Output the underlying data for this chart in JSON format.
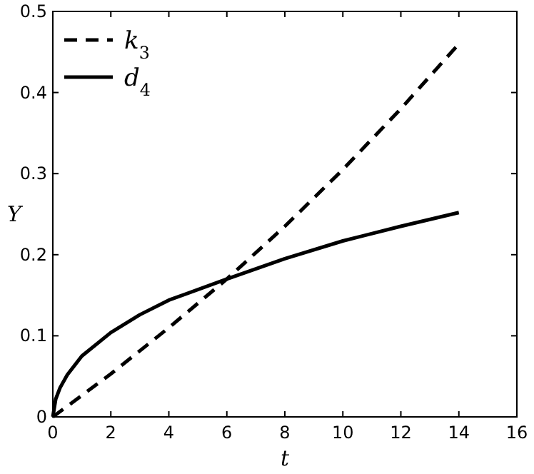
{
  "chart_data": {
    "type": "line",
    "xlabel": "t",
    "ylabel": "Y",
    "xlim": [
      0,
      16
    ],
    "ylim": [
      0,
      0.5
    ],
    "xticks": [
      0,
      2,
      4,
      6,
      8,
      10,
      12,
      14,
      16
    ],
    "yticks": [
      0,
      0.1,
      0.2,
      0.3,
      0.4,
      0.5
    ],
    "grid": false,
    "legend": "top left",
    "series": [
      {
        "name": "k$_{3}$",
        "color": "#000000",
        "line_style": "dashed",
        "x": [
          0,
          2,
          4,
          6,
          8,
          10,
          12,
          14
        ],
        "values": [
          0,
          0.053,
          0.11,
          0.17,
          0.235,
          0.305,
          0.38,
          0.46
        ]
      },
      {
        "name": "d$_{4}$",
        "color": "#000000",
        "line_style": "solid",
        "x": [
          0,
          0.1,
          0.25,
          0.5,
          1,
          2,
          3,
          4,
          6,
          8,
          10,
          12,
          14
        ],
        "values": [
          0,
          0.022,
          0.036,
          0.052,
          0.075,
          0.104,
          0.126,
          0.144,
          0.17,
          0.195,
          0.217,
          0.235,
          0.252
        ]
      }
    ]
  }
}
